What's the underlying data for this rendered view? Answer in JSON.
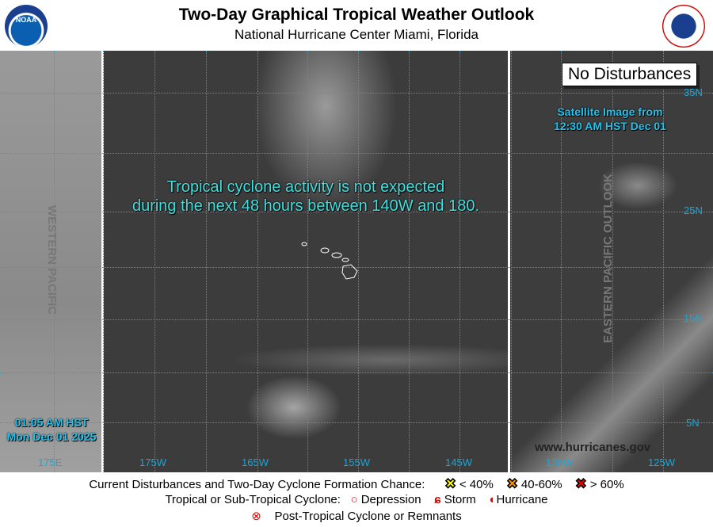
{
  "header": {
    "title": "Two-Day Graphical Tropical Weather Outlook",
    "subtitle": "National Hurricane Center  Miami, Florida",
    "noaa_logo": "NOAA",
    "nws_logo": "NATIONAL WEATHER SERVICE"
  },
  "map": {
    "status_box": "No Disturbances",
    "outlook_text_1": "Tropical cyclone activity is not expected",
    "outlook_text_2": "during the next 48 hours between 140W and 180.",
    "satellite_1": "Satellite Image from",
    "satellite_2": "12:30 AM HST Dec 01",
    "issued_1": "01:05 AM HST",
    "issued_2": "Mon Dec 01 2025",
    "western_label": "WESTERN PACIFIC",
    "eastern_label": "EASTERN PACIFIC OUTLOOK",
    "website": "www.hurricanes.gov",
    "lon_labels": [
      "175E",
      "175W",
      "165W",
      "155W",
      "145W",
      "135W",
      "125W"
    ],
    "lat_labels": [
      "35N",
      "25N",
      "15N",
      "5N"
    ],
    "grid_color": "#1aa6d6"
  },
  "legend": {
    "row1_label": "Current Disturbances and Two-Day Cyclone Formation Chance:",
    "low": "< 40%",
    "mid": "40-60%",
    "high": "> 60%",
    "low_color": "#ffff00",
    "mid_color": "#ff9900",
    "high_color": "#ff0000",
    "row2_label": "Tropical or Sub-Tropical Cyclone:",
    "depression": "Depression",
    "storm": "Storm",
    "hurricane": "Hurricane",
    "post_tropical": "Post-Tropical Cyclone or Remnants"
  }
}
